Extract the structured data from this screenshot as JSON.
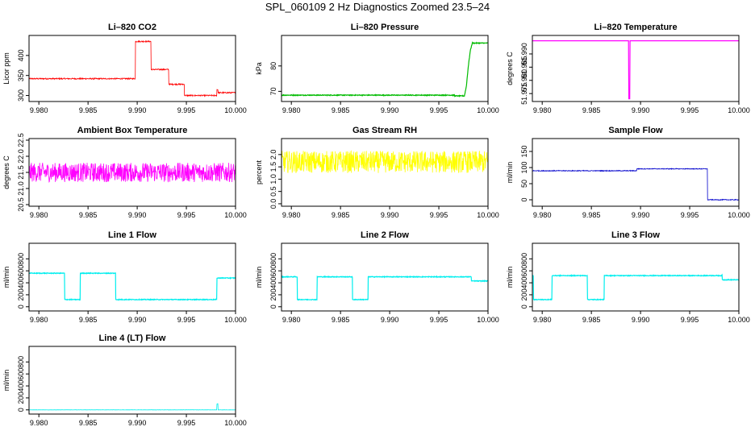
{
  "page": {
    "title": "SPL_060109  2 Hz Diagnostics Zoomed 23.5–24"
  },
  "chart_data": [
    {
      "id": "co2",
      "type": "line",
      "title": "Li–820 CO2",
      "ylabel": "Licor ppm",
      "color": "#ff0000",
      "xlim": [
        9.979,
        10.0
      ],
      "ylim": [
        285,
        450
      ],
      "yticks": [
        300,
        350,
        400
      ],
      "ytick_labels": [
        "300",
        "350",
        "400"
      ],
      "xticks": [
        9.98,
        9.985,
        9.99,
        9.995,
        10.0
      ],
      "xtick_labels": [
        "9.980",
        "9.985",
        "9.990",
        "9.995",
        "10.000"
      ],
      "noise": 1.5,
      "series": [
        {
          "x": [
            9.979,
            9.9898,
            9.9898,
            9.9914,
            9.9914,
            9.9932,
            9.9932,
            9.9948,
            9.9948,
            9.9981,
            9.9981,
            9.9982,
            9.9982,
            10.0
          ],
          "y": [
            342,
            342,
            435,
            435,
            365,
            365,
            328,
            328,
            300,
            300,
            315,
            315,
            307,
            307
          ]
        }
      ]
    },
    {
      "id": "pressure",
      "type": "line",
      "title": "Li–820 Pressure",
      "ylabel": "kPa",
      "color": "#00bb00",
      "xlim": [
        9.979,
        10.0
      ],
      "ylim": [
        66,
        92
      ],
      "yticks": [
        70,
        80
      ],
      "ytick_labels": [
        "70",
        "80"
      ],
      "xticks": [
        9.98,
        9.985,
        9.99,
        9.995,
        10.0
      ],
      "xtick_labels": [
        "9.980",
        "9.985",
        "9.990",
        "9.995",
        "10.000"
      ],
      "noise": 0.15,
      "series": [
        {
          "x": [
            9.979,
            9.9966,
            9.9966,
            9.9976,
            9.9978,
            9.998,
            9.9982,
            9.9984,
            10.0
          ],
          "y": [
            68.5,
            68.5,
            68.2,
            68.2,
            72,
            80,
            86,
            89,
            89
          ]
        }
      ]
    },
    {
      "id": "temperature",
      "type": "line",
      "title": "Li–820 Temperature",
      "ylabel": "degrees C",
      "color": "#ff00ff",
      "xlim": [
        9.979,
        10.0
      ],
      "ylim": [
        51.972,
        51.997
      ],
      "yticks": [
        51.975,
        51.98,
        51.985,
        51.99
      ],
      "ytick_labels": [
        "51.975",
        "51.980",
        "51.985",
        "51.990"
      ],
      "xticks": [
        9.98,
        9.985,
        9.99,
        9.995,
        10.0
      ],
      "xtick_labels": [
        "9.980",
        "9.985",
        "9.990",
        "9.995",
        "10.000"
      ],
      "noise": 0,
      "series": [
        {
          "x": [
            9.979,
            9.9888,
            9.9888,
            9.9889,
            9.9889,
            10.0
          ],
          "y": [
            51.995,
            51.995,
            51.973,
            51.973,
            51.995,
            51.995
          ]
        }
      ]
    },
    {
      "id": "ambient",
      "type": "line",
      "title": "Ambient Box Temperature",
      "ylabel": "degrees C",
      "color": "#ff00ff",
      "xlim": [
        9.979,
        10.0
      ],
      "ylim": [
        20.45,
        22.55
      ],
      "yticks": [
        20.5,
        21.0,
        21.5,
        22.0,
        22.5
      ],
      "ytick_labels": [
        "20.5",
        "21.0",
        "21.5",
        "22.0",
        "22.5"
      ],
      "xticks": [
        9.98,
        9.985,
        9.99,
        9.995,
        10.0
      ],
      "xtick_labels": [
        "9.980",
        "9.985",
        "9.990",
        "9.995",
        "10.000"
      ],
      "noise": 0.3,
      "series": [
        {
          "x": [
            9.979,
            10.0
          ],
          "y": [
            21.5,
            21.5
          ]
        }
      ]
    },
    {
      "id": "rh",
      "type": "line",
      "title": "Gas Stream RH",
      "ylabel": "percent",
      "color": "#ffff00",
      "xlim": [
        9.979,
        10.0
      ],
      "ylim": [
        -0.1,
        2.65
      ],
      "yticks": [
        0.0,
        0.5,
        1.0,
        1.5,
        2.0
      ],
      "ytick_labels": [
        "0.0",
        "0.5",
        "1.0",
        "1.5",
        "2.0"
      ],
      "xticks": [
        9.98,
        9.985,
        9.99,
        9.995,
        10.0
      ],
      "xtick_labels": [
        "9.980",
        "9.985",
        "9.990",
        "9.995",
        "10.000"
      ],
      "noise": 0.45,
      "series": [
        {
          "x": [
            9.979,
            10.0
          ],
          "y": [
            1.7,
            1.7
          ]
        }
      ]
    },
    {
      "id": "sample",
      "type": "line",
      "title": "Sample Flow",
      "ylabel": "ml/min",
      "color": "#0000cc",
      "xlim": [
        9.979,
        10.0
      ],
      "ylim": [
        -20,
        190
      ],
      "yticks": [
        0,
        50,
        100,
        150
      ],
      "ytick_labels": [
        "0",
        "50",
        "100",
        "150"
      ],
      "xticks": [
        9.98,
        9.985,
        9.99,
        9.995,
        10.0
      ],
      "xtick_labels": [
        "9.980",
        "9.985",
        "9.990",
        "9.995",
        "10.000"
      ],
      "noise": 1.2,
      "series": [
        {
          "x": [
            9.979,
            9.9896,
            9.9896,
            9.9968,
            9.9968,
            10.0
          ],
          "y": [
            90,
            90,
            96,
            96,
            0,
            0
          ]
        }
      ]
    },
    {
      "id": "line1",
      "type": "line",
      "title": "Line 1 Flow",
      "ylabel": "ml/min",
      "color": "#00eeee",
      "xlim": [
        9.979,
        10.0
      ],
      "ylim": [
        -70,
        1060
      ],
      "yticks": [
        0,
        200,
        400,
        600,
        800
      ],
      "ytick_labels": [
        "0",
        "200",
        "400",
        "600",
        "800"
      ],
      "xticks": [
        9.98,
        9.985,
        9.99,
        9.995,
        10.0
      ],
      "xtick_labels": [
        "9.980",
        "9.985",
        "9.990",
        "9.995",
        "10.000"
      ],
      "noise": 6,
      "series": [
        {
          "x": [
            9.979,
            9.9826,
            9.9826,
            9.9842,
            9.9842,
            9.9878,
            9.9878,
            9.9981,
            9.9981,
            10.0
          ],
          "y": [
            560,
            560,
            120,
            120,
            560,
            560,
            120,
            120,
            480,
            480
          ]
        }
      ]
    },
    {
      "id": "line2",
      "type": "line",
      "title": "Line 2 Flow",
      "ylabel": "ml/min",
      "color": "#00eeee",
      "xlim": [
        9.979,
        10.0
      ],
      "ylim": [
        -70,
        1060
      ],
      "yticks": [
        0,
        200,
        400,
        600,
        800
      ],
      "ytick_labels": [
        "0",
        "200",
        "400",
        "600",
        "800"
      ],
      "xticks": [
        9.98,
        9.985,
        9.99,
        9.995,
        10.0
      ],
      "xtick_labels": [
        "9.980",
        "9.985",
        "9.990",
        "9.995",
        "10.000"
      ],
      "noise": 6,
      "series": [
        {
          "x": [
            9.979,
            9.9806,
            9.9806,
            9.9826,
            9.9826,
            9.9862,
            9.9862,
            9.9878,
            9.9878,
            9.9983,
            9.9983,
            10.0
          ],
          "y": [
            500,
            500,
            120,
            120,
            500,
            500,
            120,
            120,
            500,
            500,
            430,
            430
          ]
        }
      ]
    },
    {
      "id": "line3",
      "type": "line",
      "title": "Line 3 Flow",
      "ylabel": "ml/min",
      "color": "#00eeee",
      "xlim": [
        9.979,
        10.0
      ],
      "ylim": [
        -70,
        1060
      ],
      "yticks": [
        0,
        200,
        400,
        600,
        800
      ],
      "ytick_labels": [
        "0",
        "200",
        "400",
        "600",
        "800"
      ],
      "xticks": [
        9.98,
        9.985,
        9.99,
        9.995,
        10.0
      ],
      "xtick_labels": [
        "9.980",
        "9.985",
        "9.990",
        "9.995",
        "10.000"
      ],
      "noise": 6,
      "series": [
        {
          "x": [
            9.979,
            9.9791,
            9.9791,
            9.981,
            9.981,
            9.9846,
            9.9846,
            9.9863,
            9.9863,
            9.9983,
            9.9983,
            10.0
          ],
          "y": [
            520,
            520,
            120,
            120,
            520,
            520,
            120,
            120,
            520,
            520,
            450,
            450
          ]
        }
      ]
    },
    {
      "id": "line4",
      "type": "line",
      "title": "Line 4 (LT) Flow",
      "ylabel": "ml/min",
      "color": "#00eeee",
      "xlim": [
        9.979,
        10.0
      ],
      "ylim": [
        -70,
        1060
      ],
      "yticks": [
        0,
        200,
        400,
        600,
        800
      ],
      "ytick_labels": [
        "0",
        "200",
        "400",
        "600",
        "800"
      ],
      "xticks": [
        9.98,
        9.985,
        9.99,
        9.995,
        10.0
      ],
      "xtick_labels": [
        "9.980",
        "9.985",
        "9.990",
        "9.995",
        "10.000"
      ],
      "noise": 2,
      "series": [
        {
          "x": [
            9.979,
            9.9981,
            9.9981,
            9.9982,
            9.9982,
            10.0
          ],
          "y": [
            0,
            0,
            100,
            100,
            0,
            0
          ]
        }
      ]
    }
  ]
}
